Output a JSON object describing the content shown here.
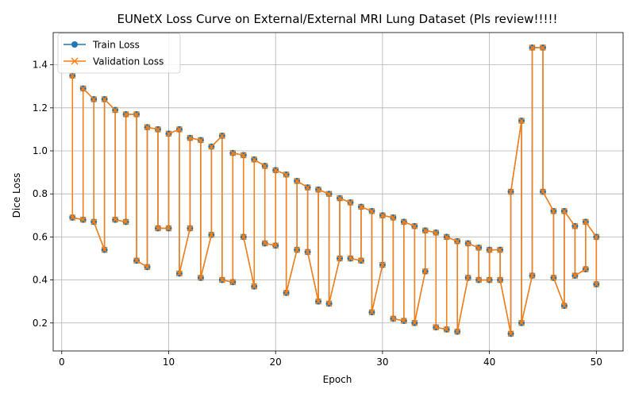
{
  "chart_data": {
    "type": "line",
    "title": "EUNetX Loss Curve on External/External MRI Lung Dataset (Pls review!!!!!",
    "xlabel": "Epoch",
    "ylabel": "Dice Loss",
    "xlim": [
      -0.8,
      52.5
    ],
    "ylim": [
      0.07,
      1.55
    ],
    "xticks": [
      0,
      10,
      20,
      30,
      40,
      50
    ],
    "yticks": [
      0.2,
      0.4,
      0.6,
      0.8,
      1.0,
      1.2,
      1.4
    ],
    "ytick_labels": [
      "0.2",
      "0.4",
      "0.6",
      "0.8",
      "1.0",
      "1.2",
      "1.4"
    ],
    "grid": true,
    "legend_position": "top-left",
    "x": [
      1,
      1,
      2,
      2,
      3,
      3,
      4,
      4,
      5,
      5,
      6,
      6,
      7,
      7,
      8,
      8,
      9,
      9,
      10,
      10,
      11,
      11,
      12,
      12,
      13,
      13,
      14,
      14,
      15,
      15,
      16,
      16,
      17,
      17,
      18,
      18,
      19,
      19,
      20,
      20,
      21,
      21,
      22,
      22,
      23,
      23,
      24,
      24,
      25,
      25,
      26,
      26,
      27,
      27,
      28,
      28,
      29,
      29,
      30,
      30,
      31,
      31,
      32,
      32,
      33,
      33,
      34,
      34,
      35,
      35,
      36,
      36,
      37,
      37,
      38,
      38,
      39,
      39,
      40,
      40,
      41,
      41,
      42,
      42,
      43,
      43,
      44,
      44,
      45,
      45,
      46,
      46,
      47,
      47,
      48,
      48,
      49,
      49,
      50,
      50
    ],
    "series": [
      {
        "name": "Train Loss",
        "color": "#1f77b4",
        "marker": "circle",
        "values": [
          1.35,
          0.69,
          0.68,
          1.29,
          1.24,
          0.67,
          0.54,
          1.24,
          1.19,
          0.68,
          0.67,
          1.17,
          1.17,
          0.49,
          0.46,
          1.11,
          1.1,
          0.64,
          0.64,
          1.08,
          1.1,
          0.43,
          0.64,
          1.06,
          1.05,
          0.41,
          0.61,
          1.02,
          1.07,
          0.4,
          0.39,
          0.99,
          0.98,
          0.6,
          0.37,
          0.96,
          0.93,
          0.57,
          0.56,
          0.91,
          0.89,
          0.34,
          0.54,
          0.86,
          0.83,
          0.53,
          0.3,
          0.82,
          0.8,
          0.29,
          0.5,
          0.78,
          0.76,
          0.5,
          0.49,
          0.74,
          0.72,
          0.25,
          0.47,
          0.7,
          0.69,
          0.22,
          0.21,
          0.67,
          0.65,
          0.2,
          0.44,
          0.63,
          0.62,
          0.18,
          0.17,
          0.6,
          0.58,
          0.16,
          0.41,
          0.57,
          0.55,
          0.4,
          0.4,
          0.54,
          0.54,
          0.4,
          0.15,
          0.81,
          1.14,
          0.2,
          0.42,
          1.48,
          1.48,
          0.81,
          0.72,
          0.41,
          0.28,
          0.72,
          0.65,
          0.42,
          0.45,
          0.67,
          0.6,
          0.38
        ]
      },
      {
        "name": "Validation Loss",
        "color": "#ff7f0e",
        "marker": "x",
        "values": [
          1.35,
          0.69,
          0.68,
          1.29,
          1.24,
          0.67,
          0.54,
          1.24,
          1.19,
          0.68,
          0.67,
          1.17,
          1.17,
          0.49,
          0.46,
          1.11,
          1.1,
          0.64,
          0.64,
          1.08,
          1.1,
          0.43,
          0.64,
          1.06,
          1.05,
          0.41,
          0.61,
          1.02,
          1.07,
          0.4,
          0.39,
          0.99,
          0.98,
          0.6,
          0.37,
          0.96,
          0.93,
          0.57,
          0.56,
          0.91,
          0.89,
          0.34,
          0.54,
          0.86,
          0.83,
          0.53,
          0.3,
          0.82,
          0.8,
          0.29,
          0.5,
          0.78,
          0.76,
          0.5,
          0.49,
          0.74,
          0.72,
          0.25,
          0.47,
          0.7,
          0.69,
          0.22,
          0.21,
          0.67,
          0.65,
          0.2,
          0.44,
          0.63,
          0.62,
          0.18,
          0.17,
          0.6,
          0.58,
          0.16,
          0.41,
          0.57,
          0.55,
          0.4,
          0.4,
          0.54,
          0.54,
          0.4,
          0.15,
          0.81,
          1.14,
          0.2,
          0.42,
          1.48,
          1.48,
          0.81,
          0.72,
          0.41,
          0.28,
          0.72,
          0.65,
          0.42,
          0.45,
          0.67,
          0.6,
          0.38
        ]
      }
    ]
  }
}
